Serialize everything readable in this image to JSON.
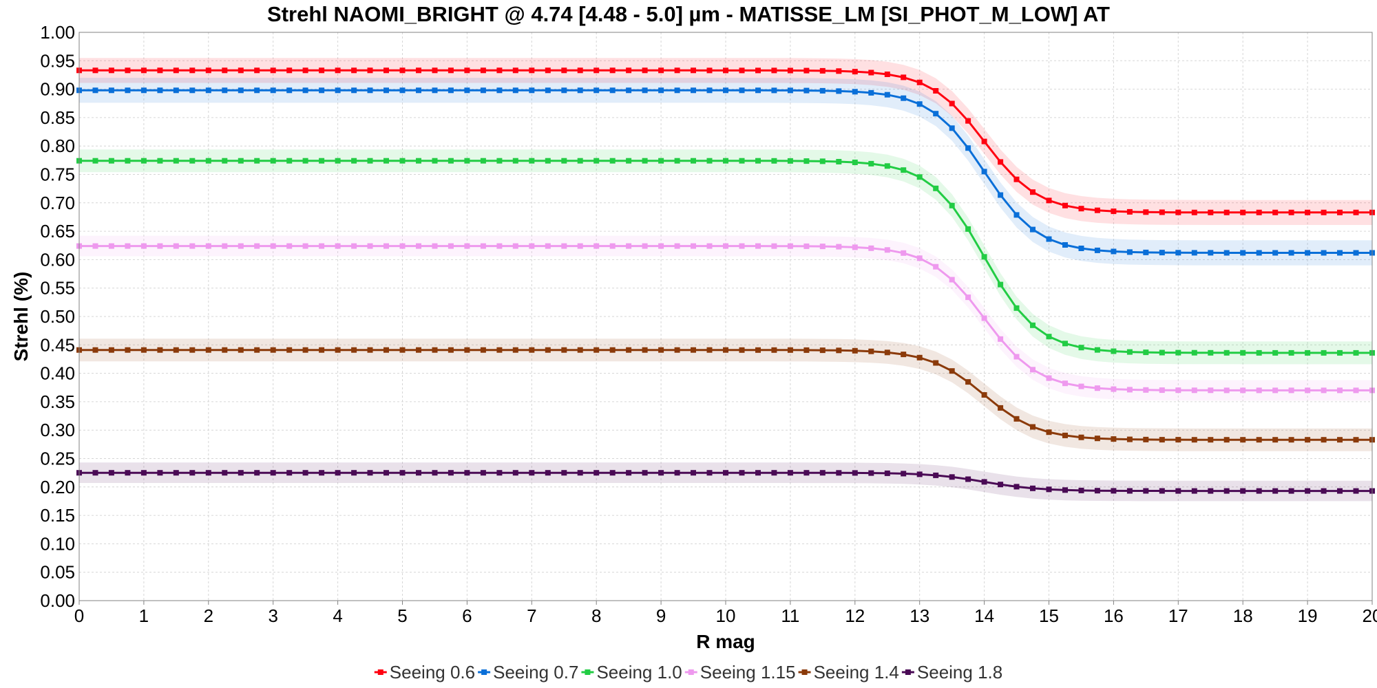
{
  "chart_data": {
    "type": "line",
    "title": "Strehl NAOMI_BRIGHT @ 4.74 [4.48 - 5.0] µm - MATISSE_LM [SI_PHOT_M_LOW] AT",
    "xlabel": "R mag",
    "ylabel": "Strehl (%)",
    "xlim": [
      0,
      20
    ],
    "ylim": [
      0,
      1
    ],
    "x_ticks": [
      "0",
      "1",
      "2",
      "3",
      "4",
      "5",
      "6",
      "7",
      "8",
      "9",
      "10",
      "11",
      "12",
      "13",
      "14",
      "15",
      "16",
      "17",
      "18",
      "19",
      "20"
    ],
    "y_ticks": [
      "0.00",
      "0.05",
      "0.10",
      "0.15",
      "0.20",
      "0.25",
      "0.30",
      "0.35",
      "0.40",
      "0.45",
      "0.50",
      "0.55",
      "0.60",
      "0.65",
      "0.70",
      "0.75",
      "0.80",
      "0.85",
      "0.90",
      "0.95",
      "1.00"
    ],
    "grid": true,
    "legend_position": "bottom",
    "x_step": 0.25,
    "series": [
      {
        "name": "Seeing 0.6",
        "color": "#ff0010",
        "start": 0.933,
        "end": 0.683,
        "band": 0.022
      },
      {
        "name": "Seeing 0.7",
        "color": "#0a6fd8",
        "start": 0.898,
        "end": 0.612,
        "band": 0.022
      },
      {
        "name": "Seeing 1.0",
        "color": "#22cc44",
        "start": 0.774,
        "end": 0.436,
        "band": 0.02
      },
      {
        "name": "Seeing 1.15",
        "color": "#ee99ee",
        "start": 0.624,
        "end": 0.37,
        "band": 0.018
      },
      {
        "name": "Seeing 1.4",
        "color": "#8b3a0a",
        "start": 0.441,
        "end": 0.283,
        "band": 0.02
      },
      {
        "name": "Seeing 1.8",
        "color": "#4a0a55",
        "start": 0.225,
        "end": 0.193,
        "band": 0.018
      }
    ],
    "transition": {
      "center": 14.0,
      "width": 0.42
    }
  }
}
